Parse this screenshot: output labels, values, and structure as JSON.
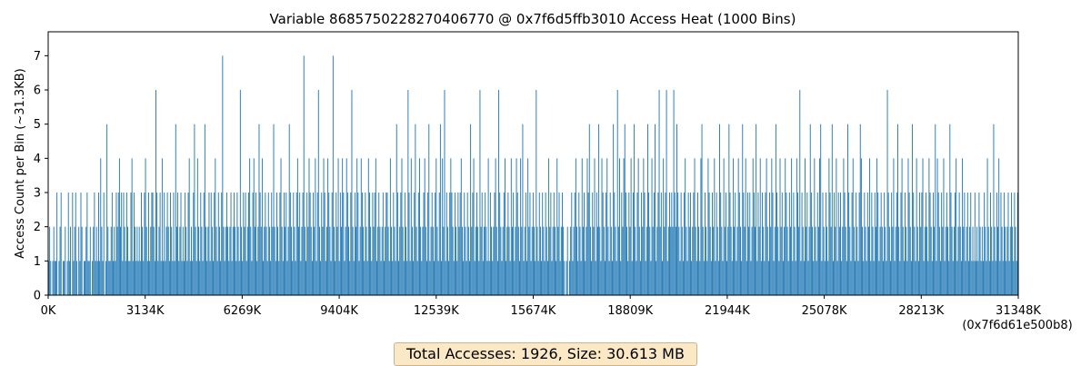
{
  "chart_data": {
    "type": "bar",
    "title": "Variable 8685750228270406770 @ 0x7f6d5ffb3010 Access Heat (1000 Bins)",
    "xlabel": "",
    "ylabel": "Access Count per Bin (~31.3KB)",
    "x_range": [
      0,
      31348
    ],
    "ylim": [
      0,
      7.7
    ],
    "x_ticks": [
      "0K",
      "3134K",
      "6269K",
      "9404K",
      "12539K",
      "15674K",
      "18809K",
      "21944K",
      "25078K",
      "28213K",
      "31348K"
    ],
    "x_end_address": "(0x7f6d61e500b8)",
    "y_ticks": [
      0,
      1,
      2,
      3,
      4,
      5,
      6,
      7
    ],
    "bar_color": "#1f77b4",
    "grid": false,
    "bins": 1000,
    "values": [
      1,
      2,
      1,
      0,
      1,
      2,
      1,
      1,
      3,
      0,
      1,
      2,
      3,
      0,
      1,
      1,
      2,
      0,
      1,
      3,
      1,
      2,
      0,
      3,
      1,
      2,
      3,
      1,
      0,
      2,
      1,
      3,
      2,
      0,
      1,
      1,
      2,
      3,
      1,
      1,
      2,
      0,
      1,
      2,
      3,
      1,
      2,
      1,
      3,
      1,
      4,
      2,
      1,
      3,
      0,
      1,
      5,
      2,
      1,
      1,
      2,
      3,
      1,
      2,
      1,
      3,
      2,
      3,
      4,
      2,
      3,
      1,
      3,
      2,
      1,
      3,
      2,
      1,
      1,
      3,
      4,
      1,
      3,
      2,
      1,
      2,
      1,
      2,
      1,
      3,
      2,
      1,
      3,
      4,
      2,
      1,
      3,
      1,
      2,
      3,
      3,
      2,
      1,
      6,
      3,
      1,
      2,
      3,
      1,
      4,
      1,
      3,
      1,
      2,
      3,
      2,
      1,
      3,
      2,
      1,
      3,
      1,
      5,
      2,
      3,
      1,
      2,
      3,
      1,
      2,
      1,
      3,
      2,
      1,
      3,
      4,
      1,
      2,
      1,
      3,
      5,
      2,
      1,
      4,
      2,
      1,
      3,
      2,
      1,
      3,
      5,
      2,
      1,
      2,
      3,
      1,
      3,
      2,
      1,
      3,
      4,
      2,
      1,
      3,
      2,
      1,
      3,
      7,
      2,
      1,
      2,
      3,
      2,
      1,
      2,
      3,
      1,
      2,
      3,
      2,
      1,
      3,
      2,
      1,
      6,
      2,
      1,
      3,
      2,
      3,
      1,
      2,
      3,
      4,
      2,
      1,
      3,
      4,
      2,
      3,
      1,
      2,
      5,
      3,
      2,
      4,
      1,
      2,
      3,
      2,
      1,
      3,
      2,
      1,
      3,
      2,
      5,
      2,
      1,
      3,
      2,
      1,
      3,
      4,
      2,
      1,
      3,
      2,
      3,
      1,
      2,
      5,
      3,
      2,
      1,
      3,
      2,
      1,
      3,
      4,
      2,
      3,
      1,
      2,
      3,
      7,
      2,
      1,
      3,
      2,
      4,
      3,
      2,
      1,
      3,
      2,
      4,
      1,
      3,
      6,
      2,
      1,
      3,
      2,
      4,
      3,
      1,
      2,
      4,
      3,
      2,
      1,
      3,
      7,
      2,
      1,
      3,
      2,
      4,
      1,
      3,
      2,
      4,
      3,
      1,
      2,
      4,
      3,
      2,
      1,
      3,
      6,
      2,
      1,
      3,
      2,
      4,
      3,
      1,
      2,
      4,
      3,
      2,
      1,
      3,
      2,
      1,
      4,
      3,
      2,
      1,
      3,
      2,
      3,
      4,
      1,
      2,
      3,
      2,
      1,
      2,
      3,
      1,
      2,
      3,
      3,
      2,
      1,
      4,
      2,
      1,
      3,
      2,
      1,
      5,
      3,
      1,
      2,
      3,
      4,
      2,
      1,
      3,
      2,
      1,
      6,
      3,
      1,
      4,
      2,
      1,
      3,
      5,
      2,
      1,
      3,
      4,
      2,
      1,
      2,
      3,
      4,
      2,
      1,
      3,
      5,
      1,
      2,
      3,
      2,
      1,
      3,
      4,
      2,
      1,
      3,
      5,
      1,
      4,
      2,
      6,
      1,
      3,
      2,
      1,
      3,
      4,
      3,
      2,
      1,
      3,
      2,
      1,
      3,
      2,
      3,
      4,
      2,
      1,
      3,
      2,
      1,
      3,
      2,
      1,
      5,
      2,
      3,
      4,
      1,
      2,
      3,
      2,
      1,
      6,
      2,
      3,
      1,
      2,
      3,
      2,
      1,
      4,
      1,
      3,
      2,
      1,
      2,
      3,
      4,
      2,
      1,
      6,
      3,
      2,
      1,
      2,
      3,
      4,
      1,
      2,
      3,
      2,
      1,
      4,
      2,
      3,
      1,
      2,
      4,
      3,
      2,
      1,
      4,
      2,
      5,
      1,
      2,
      3,
      1,
      4,
      2,
      3,
      1,
      2,
      3,
      2,
      1,
      6,
      2,
      1,
      3,
      2,
      1,
      3,
      2,
      1,
      3,
      2,
      1,
      4,
      2,
      3,
      1,
      2,
      3,
      2,
      1,
      4,
      2,
      3,
      1,
      2,
      3,
      2,
      1,
      0,
      1,
      2,
      0,
      1,
      2,
      3,
      1,
      2,
      3,
      4,
      2,
      1,
      3,
      2,
      1,
      4,
      2,
      3,
      1,
      2,
      4,
      3,
      5,
      2,
      1,
      3,
      2,
      4,
      1,
      3,
      2,
      5,
      2,
      1,
      4,
      3,
      2,
      1,
      3,
      4,
      2,
      1,
      3,
      2,
      1,
      5,
      3,
      2,
      1,
      6,
      2,
      4,
      1,
      3,
      2,
      4,
      5,
      3,
      2,
      1,
      3,
      2,
      4,
      1,
      3,
      5,
      2,
      1,
      3,
      4,
      2,
      1,
      3,
      2,
      4,
      3,
      1,
      2,
      5,
      3,
      2,
      1,
      4,
      2,
      3,
      5,
      1,
      2,
      3,
      6,
      2,
      3,
      1,
      4,
      2,
      3,
      6,
      1,
      2,
      3,
      2,
      3,
      2,
      6,
      3,
      2,
      5,
      3,
      2,
      1,
      3,
      2,
      1,
      3,
      4,
      2,
      1,
      3,
      2,
      3,
      1,
      2,
      3,
      4,
      2,
      1,
      3,
      2,
      1,
      4,
      5,
      2,
      1,
      3,
      2,
      1,
      4,
      3,
      2,
      1,
      3,
      2,
      4,
      1,
      3,
      2,
      1,
      5,
      3,
      2,
      1,
      4,
      2,
      3,
      1,
      2,
      5,
      3,
      2,
      1,
      4,
      2,
      3,
      1,
      2,
      4,
      3,
      2,
      1,
      5,
      3,
      2,
      4,
      1,
      3,
      2,
      3,
      1,
      2,
      4,
      3,
      2,
      5,
      1,
      3,
      2,
      4,
      1,
      3,
      2,
      1,
      3,
      4,
      2,
      1,
      3,
      2,
      4,
      3,
      1,
      2,
      5,
      3,
      2,
      1,
      4,
      2,
      3,
      1,
      2,
      4,
      3,
      2,
      1,
      3,
      2,
      4,
      1,
      3,
      2,
      1,
      4,
      3,
      2,
      6,
      1,
      3,
      2,
      1,
      4,
      2,
      3,
      1,
      2,
      5,
      3,
      2,
      1,
      4,
      2,
      1,
      3,
      2,
      4,
      5,
      1,
      3,
      2,
      1,
      3,
      2,
      1,
      4,
      3,
      2,
      5,
      1,
      3,
      2,
      4,
      1,
      3,
      2,
      3,
      1,
      2,
      4,
      3,
      2,
      1,
      5,
      3,
      2,
      1,
      3,
      4,
      2,
      1,
      3,
      2,
      1,
      3,
      5,
      4,
      2,
      1,
      3,
      2,
      1,
      3,
      2,
      4,
      1,
      3,
      2,
      1,
      3,
      2,
      4,
      3,
      1,
      2,
      3,
      2,
      1,
      3,
      2,
      1,
      6,
      3,
      2,
      1,
      3,
      2,
      4,
      1,
      2,
      3,
      5,
      2,
      1,
      3,
      4,
      2,
      1,
      3,
      2,
      1,
      4,
      3,
      2,
      1,
      5,
      3,
      2,
      1,
      4,
      2,
      1,
      3,
      2,
      3,
      4,
      1,
      2,
      3,
      2,
      1,
      4,
      3,
      2,
      1,
      3,
      2,
      5,
      1,
      4,
      3,
      2,
      1,
      3,
      2,
      4,
      1,
      2,
      3,
      2,
      1,
      5,
      3,
      2,
      1,
      2,
      3,
      4,
      1,
      2,
      3,
      2,
      1,
      4,
      2,
      3,
      1,
      2,
      3,
      1,
      2,
      3,
      1,
      2,
      1,
      3,
      1,
      2,
      1,
      3,
      2,
      1,
      2,
      1,
      3,
      2,
      1,
      4,
      2,
      1,
      3,
      2,
      1,
      5,
      2,
      1,
      3,
      2,
      4,
      1,
      3,
      2,
      1,
      3,
      2,
      1,
      2,
      3,
      1,
      2,
      3,
      2,
      1,
      3,
      2,
      1,
      3
    ]
  },
  "footer": {
    "summary": "Total Accesses: 1926, Size: 30.613 MB"
  }
}
